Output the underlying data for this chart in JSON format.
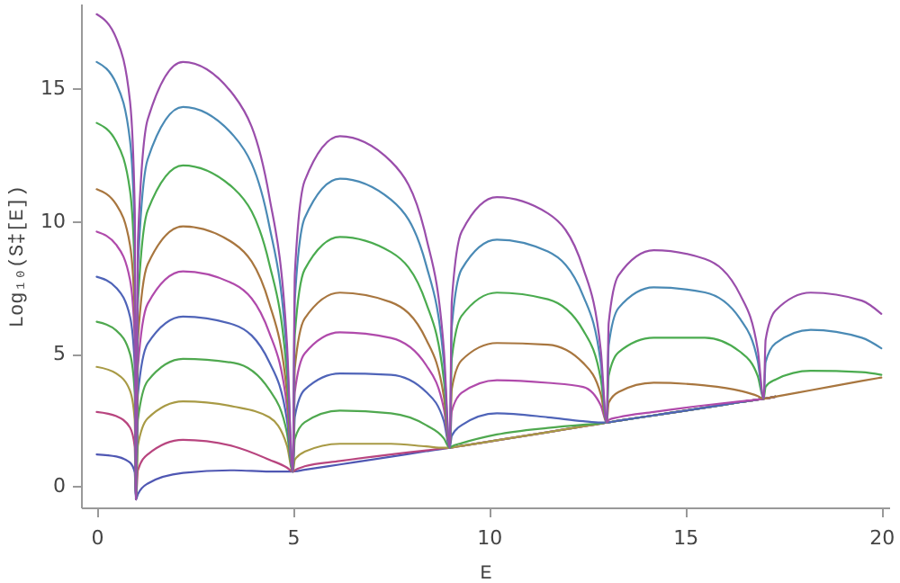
{
  "chart_data": {
    "type": "line",
    "xlabel": "E",
    "ylabel": "Log₁₀(S‡[E])",
    "x": [
      0,
      0.5,
      0.85,
      0.97,
      1,
      1.05,
      1.3,
      2.2,
      3.5,
      4.4,
      4.85,
      5,
      5.05,
      5.3,
      6.2,
      7.5,
      8.4,
      8.85,
      9,
      9.05,
      9.3,
      10.2,
      11.5,
      12.4,
      12.85,
      13,
      13.05,
      13.3,
      14.2,
      15.5,
      16.4,
      16.85,
      17,
      17.05,
      17.3,
      18.2,
      19.5,
      20
    ],
    "xlim": [
      -0.4,
      20.2
    ],
    "ylim": [
      -0.8,
      18.2
    ],
    "xticks": [
      0,
      5,
      10,
      15,
      20
    ],
    "yticks": [
      0,
      5,
      10,
      15
    ],
    "grid": false,
    "marker": "none",
    "line_style": "solid",
    "series": [
      {
        "color": "#4f57b3",
        "values": [
          1.2,
          1.12,
          0.89,
          0.52,
          -0.5,
          -0.3,
          0.1,
          0.5,
          0.6,
          0.55,
          0.55,
          0.55,
          0.56,
          0.62,
          0.82,
          1.11,
          1.32,
          1.42,
          1.45,
          1.46,
          1.52,
          1.73,
          2.04,
          2.26,
          2.36,
          2.4,
          2.41,
          2.47,
          2.67,
          2.96,
          3.17,
          3.27,
          3.3,
          3.31,
          3.38,
          null,
          null,
          null
        ]
      },
      {
        "color": "#b8457f",
        "values": [
          2.8,
          2.64,
          2.21,
          1.48,
          -0.5,
          0.6,
          1.2,
          1.75,
          1.5,
          1.0,
          0.7,
          0.55,
          0.6,
          0.75,
          0.95,
          1.2,
          1.35,
          1.43,
          1.45,
          1.46,
          1.52,
          1.73,
          2.04,
          2.26,
          2.36,
          2.4,
          2.41,
          2.47,
          2.67,
          2.96,
          3.17,
          3.27,
          3.3,
          3.31,
          3.38,
          null,
          null,
          null
        ]
      },
      {
        "color": "#a89a45",
        "values": [
          4.5,
          4.25,
          3.6,
          2.5,
          -0.5,
          1.54,
          2.56,
          3.2,
          3.0,
          2.6,
          1.53,
          0.55,
          1.0,
          1.3,
          1.6,
          1.6,
          1.5,
          1.45,
          1.45,
          1.46,
          1.52,
          1.73,
          2.04,
          2.26,
          2.36,
          2.4,
          2.41,
          2.47,
          2.67,
          2.96,
          3.17,
          3.27,
          3.3,
          3.31,
          3.38,
          null,
          null,
          null
        ]
      },
      {
        "color": "#4fa84f",
        "values": [
          6.2,
          5.87,
          4.99,
          3.52,
          -0.5,
          2.5,
          3.97,
          4.8,
          4.65,
          3.64,
          2.01,
          0.55,
          1.78,
          2.41,
          2.85,
          2.75,
          2.3,
          1.8,
          1.45,
          1.5,
          1.62,
          1.95,
          2.2,
          2.32,
          2.37,
          2.4,
          2.41,
          2.47,
          2.67,
          2.96,
          3.17,
          3.27,
          3.3,
          3.31,
          3.38,
          null,
          null,
          null
        ]
      },
      {
        "color": "#4f64b8",
        "values": [
          7.9,
          7.48,
          6.39,
          4.54,
          -0.5,
          3.46,
          5.38,
          6.4,
          6.09,
          4.68,
          2.49,
          0.55,
          2.62,
          3.64,
          4.25,
          4.2,
          3.55,
          2.45,
          1.45,
          1.9,
          2.3,
          2.75,
          2.6,
          2.45,
          2.4,
          2.4,
          2.41,
          2.47,
          2.67,
          2.96,
          3.17,
          3.27,
          3.3,
          3.31,
          3.38,
          null,
          null,
          null
        ]
      },
      {
        "color": "#b04aab",
        "values": [
          9.6,
          9.1,
          7.78,
          5.56,
          -0.5,
          4.48,
          6.88,
          8.1,
          7.62,
          5.79,
          3.0,
          0.55,
          3.55,
          5.0,
          5.8,
          5.59,
          4.56,
          2.91,
          1.45,
          2.82,
          3.52,
          4.0,
          3.9,
          3.74,
          3.04,
          2.4,
          2.5,
          2.6,
          2.8,
          3.05,
          3.2,
          3.27,
          3.3,
          3.31,
          3.38,
          null,
          null,
          null
        ]
      },
      {
        "color": "#a8763f",
        "values": [
          11.2,
          10.62,
          9.09,
          6.52,
          -0.5,
          5.5,
          8.37,
          9.8,
          9.15,
          6.89,
          3.51,
          0.55,
          4.45,
          6.32,
          7.3,
          6.94,
          5.53,
          3.36,
          1.45,
          3.66,
          4.75,
          5.4,
          5.34,
          4.65,
          3.46,
          2.4,
          3.15,
          3.55,
          3.9,
          3.8,
          3.6,
          3.4,
          3.3,
          3.31,
          3.38,
          3.62,
          3.97,
          4.1
        ]
      },
      {
        "color": "#4aab4f",
        "values": [
          13.7,
          12.99,
          11.14,
          8.02,
          -0.5,
          6.88,
          10.4,
          12.1,
          11.22,
          8.39,
          4.2,
          0.55,
          5.71,
          8.17,
          9.4,
          8.83,
          6.9,
          3.99,
          1.45,
          4.8,
          6.42,
          7.3,
          7.05,
          5.88,
          4.03,
          2.4,
          4.17,
          5.05,
          5.6,
          5.6,
          5.07,
          4.15,
          3.3,
          3.75,
          4.02,
          4.35,
          4.3,
          4.2
        ]
      },
      {
        "color": "#4a8ab5",
        "values": [
          16.0,
          15.18,
          13.03,
          9.4,
          -0.5,
          8.2,
          12.33,
          14.3,
          13.2,
          9.82,
          4.86,
          0.55,
          7.03,
          10.11,
          11.6,
          10.81,
          8.33,
          4.65,
          1.45,
          6.0,
          8.18,
          9.3,
          8.85,
          7.18,
          4.63,
          2.4,
          5.31,
          6.72,
          7.5,
          7.31,
          6.31,
          4.72,
          3.3,
          4.68,
          5.39,
          5.9,
          5.6,
          5.2
        ]
      },
      {
        "color": "#9a4eab",
        "values": [
          17.8,
          16.89,
          14.51,
          10.48,
          -0.5,
          9.22,
          13.83,
          16.0,
          14.73,
          10.92,
          5.37,
          0.55,
          7.99,
          11.51,
          13.2,
          12.25,
          9.37,
          5.13,
          1.45,
          6.96,
          9.59,
          10.9,
          10.29,
          8.22,
          5.11,
          2.4,
          6.15,
          7.95,
          8.9,
          8.57,
          7.22,
          5.14,
          3.3,
          5.52,
          6.62,
          7.3,
          7.0,
          6.5
        ]
      }
    ]
  }
}
